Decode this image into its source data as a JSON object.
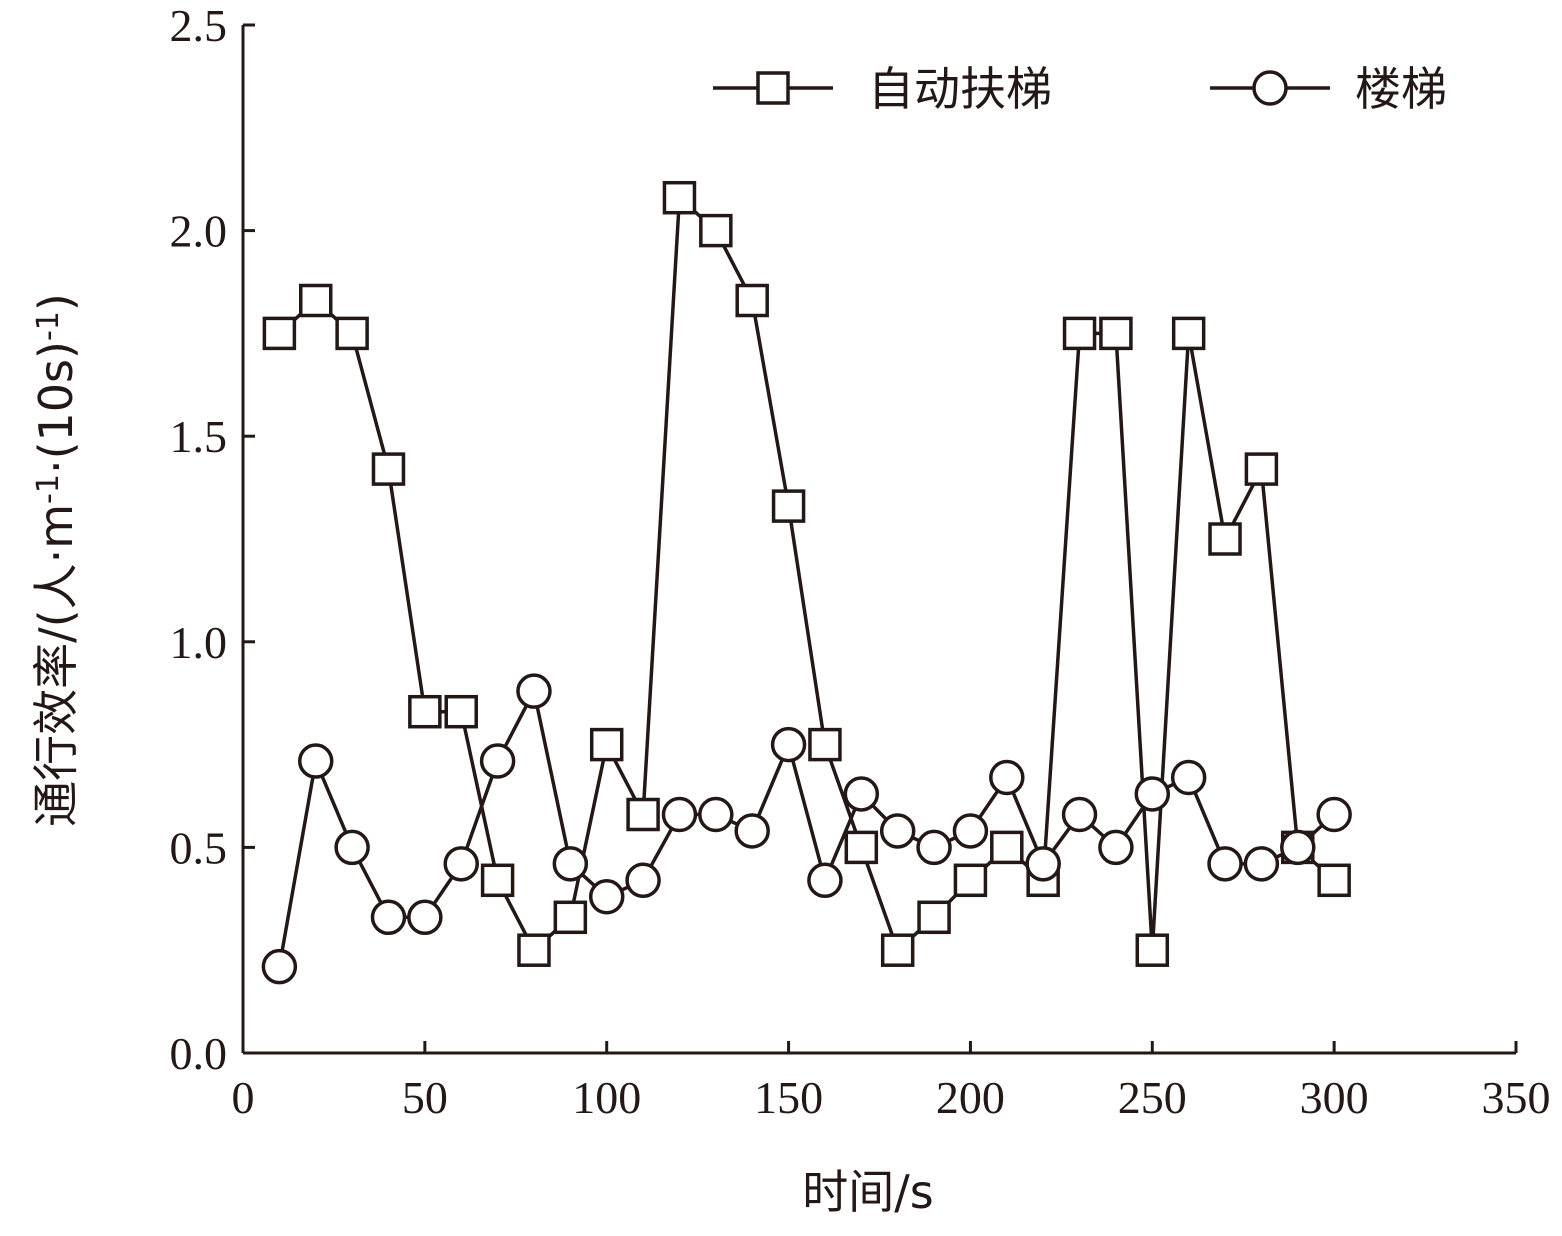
{
  "colors": {
    "ink": "#231815",
    "background": "#ffffff"
  },
  "chart_data": {
    "type": "line",
    "xlabel": "时间/s",
    "ylabel": "通行效率/(人·m-1·(10s)-1)",
    "ylabel_parts": {
      "pre": "通行效率/(人·m",
      "sup1": "-1",
      "mid": "·(10s)",
      "sup2": "-1",
      "post": ")"
    },
    "xlim": [
      0,
      350
    ],
    "ylim": [
      0,
      2.5
    ],
    "x_ticks": [
      0,
      50,
      100,
      150,
      200,
      250,
      300,
      350
    ],
    "x_tick_labels": [
      "0",
      "50",
      "100",
      "150",
      "200",
      "250",
      "300",
      "350"
    ],
    "y_ticks": [
      0,
      0.5,
      1.0,
      1.5,
      2.0,
      2.5
    ],
    "y_tick_labels": [
      "0.0",
      "0.5",
      "1.0",
      "1.5",
      "2.0",
      "2.5"
    ],
    "grid": false,
    "legend_position": "top-right",
    "x": [
      10,
      20,
      30,
      40,
      50,
      60,
      70,
      80,
      90,
      100,
      110,
      120,
      130,
      140,
      150,
      160,
      170,
      180,
      190,
      200,
      210,
      220,
      230,
      240,
      250,
      260,
      270,
      280,
      290,
      300
    ],
    "series": [
      {
        "name": "自动扶梯",
        "marker": "square",
        "values": [
          1.75,
          1.83,
          1.75,
          1.42,
          0.83,
          0.83,
          0.42,
          0.25,
          0.33,
          0.75,
          0.58,
          2.08,
          2.0,
          1.83,
          1.33,
          0.75,
          0.5,
          0.25,
          0.33,
          0.42,
          0.5,
          0.42,
          1.75,
          1.75,
          0.25,
          1.75,
          1.25,
          1.42,
          0.5,
          0.42
        ]
      },
      {
        "name": "楼梯",
        "marker": "circle",
        "values": [
          0.21,
          0.71,
          0.5,
          0.33,
          0.33,
          0.46,
          0.71,
          0.88,
          0.46,
          0.38,
          0.42,
          0.58,
          0.58,
          0.54,
          0.75,
          0.42,
          0.63,
          0.54,
          0.5,
          0.54,
          0.67,
          0.46,
          0.58,
          0.5,
          0.63,
          0.67,
          0.46,
          0.46,
          0.5,
          0.58
        ]
      }
    ]
  }
}
